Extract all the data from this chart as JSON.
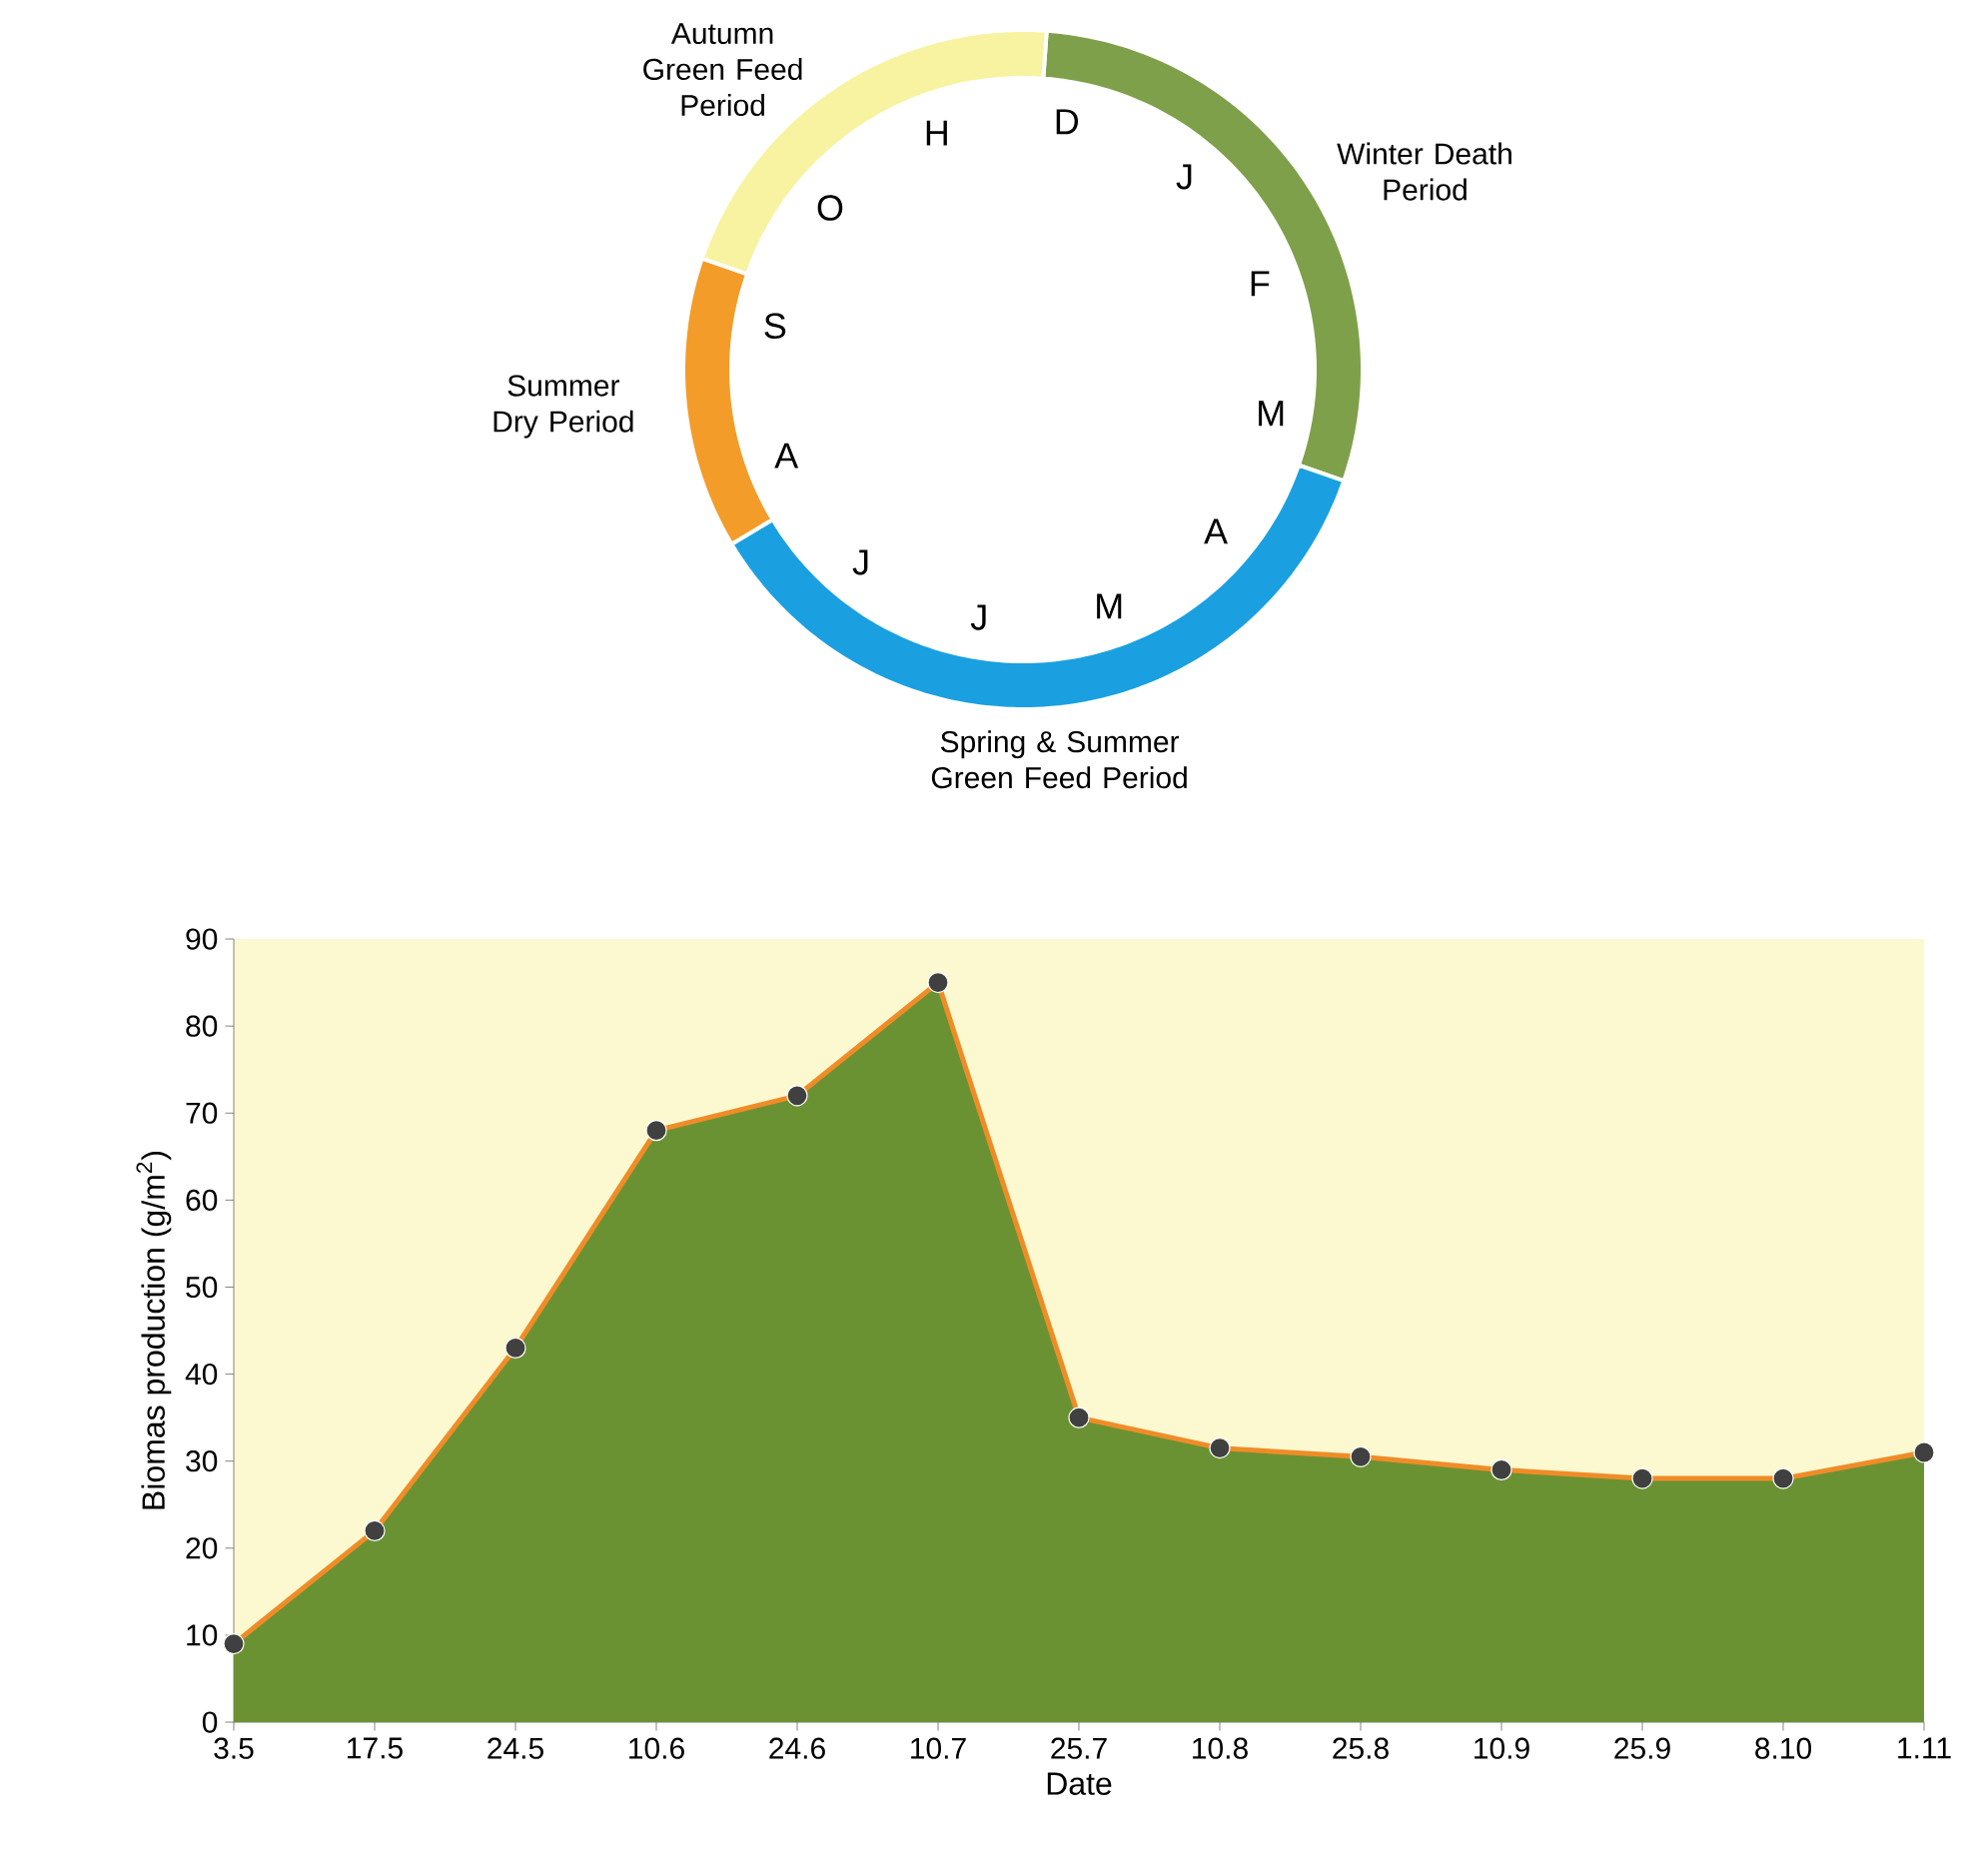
{
  "chart_data": [
    {
      "type": "donut",
      "categories": [
        "Winter Death Period",
        "Spring & Summer Green Feed Period",
        "Summer Dry Period",
        "Autumn Green Feed Period"
      ],
      "values": [
        29.2,
        36.1,
        13.9,
        20.8
      ],
      "colors": [
        "#7fa04a",
        "#1aa0e0",
        "#f39c2a",
        "#f7f3a0"
      ],
      "annotations": [
        "D",
        "J",
        "F",
        "M",
        "A",
        "M",
        "J",
        "J",
        "A",
        "S",
        "O",
        "H"
      ]
    },
    {
      "type": "area",
      "xlabel": "Date",
      "ylabel": "Biomas production  (g/m$^{2}$)",
      "categories": [
        "3.5",
        "17.5",
        "24.5",
        "10.6",
        "24.6",
        "10.7",
        "25.7",
        "10.8",
        "25.8",
        "10.9",
        "25.9",
        "8.10",
        "1.11"
      ],
      "series": [
        {
          "color": "#6b9232",
          "values": [
            9,
            22,
            43,
            68,
            72,
            85,
            35,
            31.5,
            30.5,
            29,
            28,
            28,
            31
          ]
        }
      ],
      "ylim": [
        0,
        90
      ],
      "yticks": [
        0,
        10,
        20,
        30,
        40,
        50,
        60,
        70,
        80,
        90
      ],
      "marker": "circle"
    }
  ]
}
